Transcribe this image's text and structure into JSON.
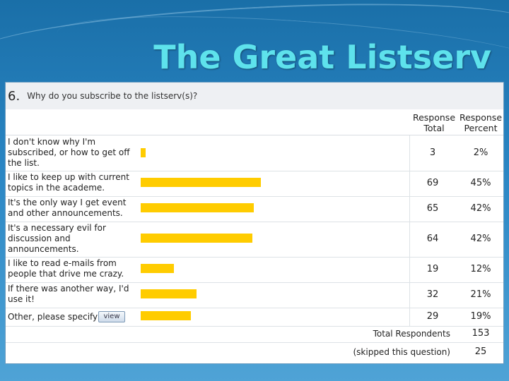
{
  "slide": {
    "title": "The Great Listserv"
  },
  "question": {
    "number": "6.",
    "text": "Why do you subscribe to the listserv(s)?"
  },
  "columns": {
    "total": "Response Total",
    "percent": "Response Percent"
  },
  "chart_data": {
    "type": "bar",
    "categories": [
      "I don't know why I'm subscribed, or how to get off the list.",
      "I like to keep up with current topics in the academe.",
      "It's the only way I get event and other announcements.",
      "It's a necessary evil for discussion and announcements.",
      "I like to read e-mails from people that drive me crazy.",
      "If there was another way, I'd use it!",
      "Other, please specify"
    ],
    "values": [
      3,
      69,
      65,
      64,
      19,
      32,
      29
    ],
    "totals_text": [
      "3",
      "69",
      "65",
      "64",
      "19",
      "32",
      "29"
    ],
    "percents": [
      2,
      45,
      42,
      42,
      12,
      21,
      19
    ],
    "percents_text": [
      "2%",
      "45%",
      "42%",
      "42%",
      "12%",
      "21%",
      "19%"
    ],
    "bar_color": "#ffcc00",
    "view_label": "view"
  },
  "footer": {
    "total_label": "Total Respondents",
    "total_value": "153",
    "skipped_label": "(skipped this question)",
    "skipped_value": "25"
  }
}
